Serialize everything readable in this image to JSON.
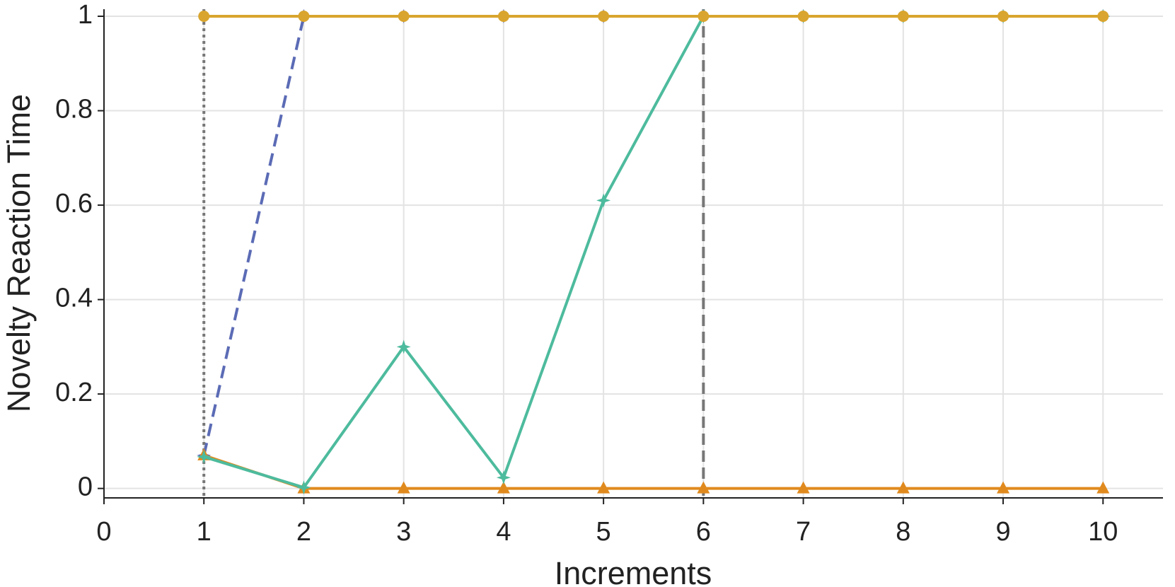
{
  "chart_data": {
    "type": "line",
    "x_label": "Increments",
    "y_label": "Novelty Reaction Time",
    "xlim": [
      0,
      10.6
    ],
    "xticks": [
      0,
      1,
      2,
      3,
      4,
      5,
      6,
      7,
      8,
      9,
      10
    ],
    "ylim": [
      -0.02,
      1.015
    ],
    "yticks": [
      0,
      0.2,
      0.4,
      0.6,
      0.8,
      1
    ],
    "grid": true,
    "x": [
      1,
      2,
      3,
      4,
      5,
      6,
      7,
      8,
      9,
      10
    ],
    "series": [
      {
        "color": "#5b6bb5",
        "dash": "dashed",
        "marker": "star",
        "values": [
          0.07,
          1,
          1,
          1,
          1,
          1,
          1,
          1,
          1,
          1
        ]
      },
      {
        "color": "#e08a1e",
        "dash": "solid",
        "marker": "triangle",
        "values": [
          0.07,
          0,
          0,
          0,
          0,
          0,
          0,
          0,
          0,
          0
        ]
      },
      {
        "color": "#4dbb9d",
        "dash": "solid",
        "marker": "star",
        "values": [
          0.067,
          0.002,
          0.3,
          0.023,
          0.61,
          1,
          1,
          1,
          1,
          1
        ]
      },
      {
        "color": "#d9a52e",
        "dash": "solid",
        "marker": "circle",
        "values": [
          1,
          1,
          1,
          1,
          1,
          1,
          1,
          1,
          1,
          1
        ]
      }
    ],
    "vlines": [
      {
        "x": 1,
        "style": "dotted"
      },
      {
        "x": 6,
        "style": "dashed"
      }
    ]
  }
}
